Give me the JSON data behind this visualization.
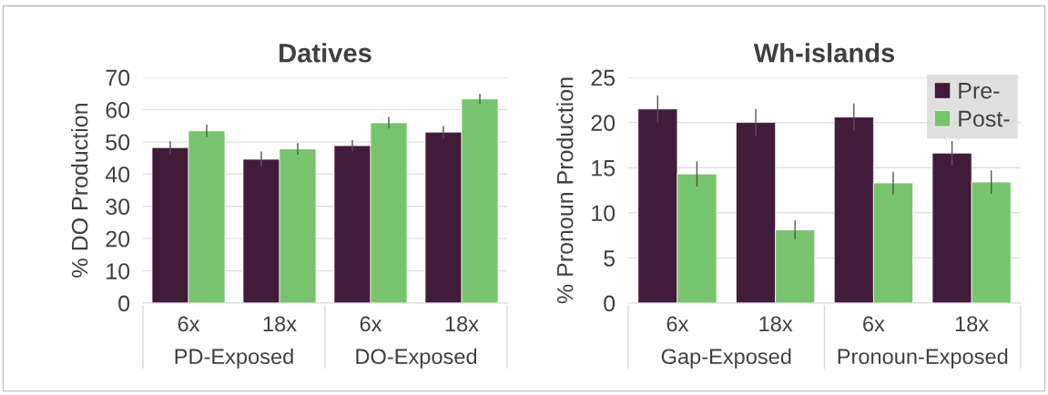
{
  "chart_data": [
    {
      "type": "bar",
      "title": "Datives",
      "ylabel": "% DO Production",
      "categories": [
        "6x",
        "18x",
        "6x",
        "18x"
      ],
      "annotations": [
        "PD-Exposed",
        "DO-Exposed"
      ],
      "ylim": [
        0,
        70
      ],
      "yticks": [
        0,
        10,
        20,
        30,
        40,
        50,
        60,
        70
      ],
      "grid": "y",
      "legend": false,
      "series": [
        {
          "color": "#421a3a",
          "values": [
            48.2,
            44.6,
            48.8,
            53.0
          ],
          "errors": [
            2.0,
            2.4,
            1.7,
            1.9
          ]
        },
        {
          "color": "#78c46e",
          "values": [
            53.4,
            47.8,
            55.9,
            63.3
          ],
          "errors": [
            1.9,
            1.8,
            1.8,
            1.6
          ]
        }
      ]
    },
    {
      "type": "bar",
      "title": "Wh-islands",
      "ylabel": "% Pronoun Production",
      "categories": [
        "6x",
        "18x",
        "6x",
        "18x"
      ],
      "annotations": [
        "Gap-Exposed",
        "Pronoun-Exposed"
      ],
      "ylim": [
        0,
        25
      ],
      "yticks": [
        0,
        5,
        10,
        15,
        20,
        25
      ],
      "grid": "y",
      "legend": "top right",
      "series": [
        {
          "name": "Pre-",
          "color": "#421a3a",
          "values": [
            21.5,
            20.0,
            20.6,
            16.6
          ],
          "errors": [
            1.5,
            1.5,
            1.5,
            1.35
          ]
        },
        {
          "name": "Post-",
          "color": "#78c46e",
          "values": [
            14.3,
            8.1,
            13.3,
            13.4
          ],
          "errors": [
            1.4,
            1.05,
            1.25,
            1.3
          ]
        }
      ]
    }
  ]
}
